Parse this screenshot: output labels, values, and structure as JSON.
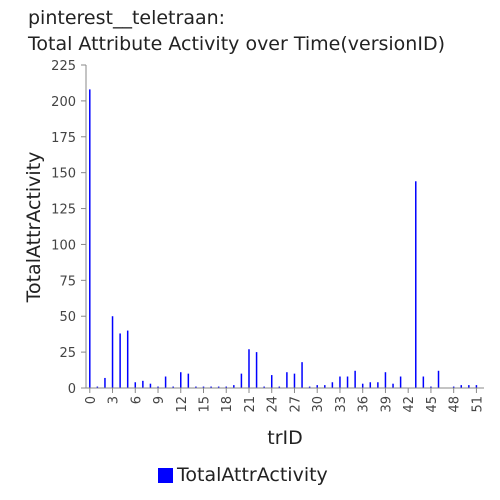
{
  "chart_data": {
    "type": "bar",
    "title_line1": "pinterest__teletraan:",
    "title_line2": "Total Attribute Activity over Time(versionID)",
    "xlabel": "trID",
    "ylabel": "TotalAttrActivity",
    "ylim": [
      0,
      225
    ],
    "yticks": [
      0,
      25,
      50,
      75,
      100,
      125,
      150,
      175,
      200,
      225
    ],
    "xticks": [
      0,
      3,
      6,
      9,
      12,
      15,
      18,
      21,
      24,
      27,
      30,
      33,
      36,
      39,
      42,
      45,
      48,
      51
    ],
    "xlim": [
      -0.5,
      52
    ],
    "series": [
      {
        "name": "TotalAttrActivity",
        "color": "#0000ff",
        "x": [
          0,
          1,
          2,
          3,
          4,
          5,
          6,
          7,
          8,
          9,
          10,
          11,
          12,
          13,
          14,
          15,
          16,
          17,
          18,
          19,
          20,
          21,
          22,
          23,
          24,
          25,
          26,
          27,
          28,
          29,
          30,
          31,
          32,
          33,
          34,
          35,
          36,
          37,
          38,
          39,
          40,
          41,
          42,
          43,
          44,
          45,
          46,
          47,
          48,
          49,
          50,
          51
        ],
        "values": [
          208,
          1,
          7,
          50,
          38,
          40,
          4,
          5,
          3,
          1,
          8,
          1,
          11,
          10,
          1,
          1,
          1,
          1,
          1,
          2,
          10,
          27,
          25,
          1,
          9,
          1,
          11,
          10,
          18,
          1,
          2,
          2,
          4,
          8,
          8,
          12,
          3,
          4,
          4,
          11,
          3,
          8,
          0,
          144,
          8,
          1,
          12,
          0,
          1,
          2,
          2,
          2
        ]
      }
    ],
    "legend": "bottom-center",
    "grid": false
  }
}
